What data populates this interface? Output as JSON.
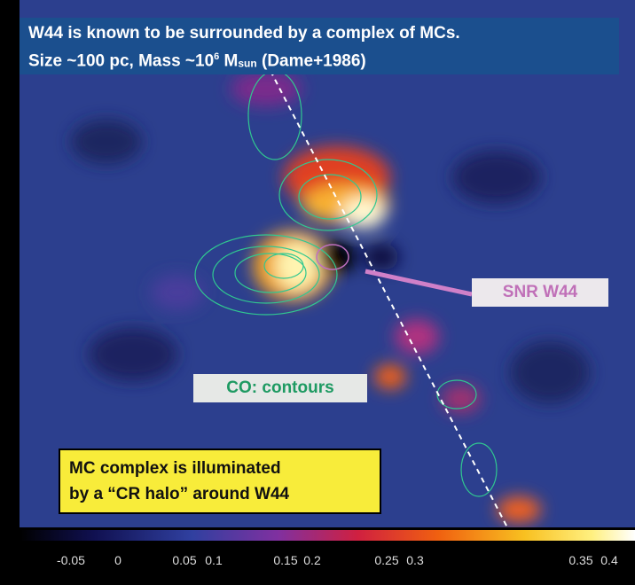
{
  "header": {
    "line1": "W44 is known to be surrounded by a complex of MCs.",
    "line2": [
      "Size ~100 pc, Mass ~10",
      "6",
      " M",
      "sun",
      " (Dame+1986)"
    ]
  },
  "labels": {
    "snr": "SNR W44",
    "co": "CO: contours",
    "note": [
      "MC complex is illuminated",
      "by a “CR halo” around W44"
    ]
  },
  "colorbar": {
    "ticks": [
      "-0.05",
      "0",
      "0.05",
      "0.1",
      "0.15",
      "0.2",
      "0.25",
      "0.3",
      "0.35",
      "0.4"
    ]
  }
}
